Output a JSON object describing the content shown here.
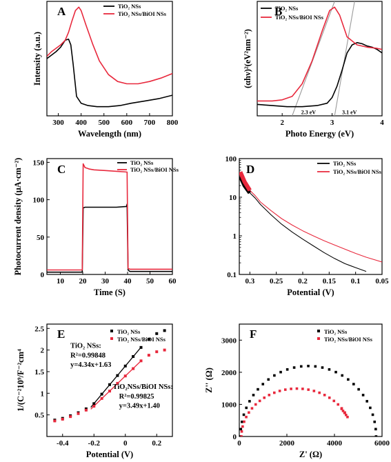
{
  "figure": {
    "panels": [
      {
        "id": "A",
        "box": "A",
        "title": "",
        "xlabel": "Wavelength (nm)",
        "ylabel": "Intensity (a.u.)",
        "xlim": [
          250,
          800
        ],
        "ylim": [
          0,
          1
        ],
        "xscale": "linear",
        "yscale": "linear",
        "xticks": [
          300,
          400,
          500,
          600,
          700,
          800
        ],
        "yticks": [],
        "legend": "top-right",
        "series": [
          {
            "name": "TiO₂ NSs",
            "color": "#000000",
            "x": [
              250,
              270,
              290,
              310,
              330,
              345,
              355,
              365,
              380,
              400,
              430,
              470,
              520,
              570,
              620,
              680,
              740,
              800
            ],
            "y": [
              0.5,
              0.53,
              0.56,
              0.6,
              0.66,
              0.67,
              0.62,
              0.45,
              0.17,
              0.11,
              0.09,
              0.08,
              0.08,
              0.09,
              0.11,
              0.13,
              0.15,
              0.18
            ]
          },
          {
            "name": "TiO₂ NSs/BiOI NSs",
            "color": "#e8283c",
            "x": [
              250,
              270,
              290,
              310,
              330,
              345,
              360,
              375,
              390,
              400,
              420,
              450,
              480,
              520,
              560,
              600,
              650,
              700,
              750,
              800
            ],
            "y": [
              0.52,
              0.56,
              0.59,
              0.62,
              0.66,
              0.73,
              0.83,
              0.92,
              0.95,
              0.92,
              0.8,
              0.63,
              0.48,
              0.36,
              0.3,
              0.28,
              0.28,
              0.3,
              0.33,
              0.37
            ]
          }
        ],
        "annotations": []
      },
      {
        "id": "B",
        "box": "B",
        "title": "",
        "xlabel": "Photo Energy (eV)",
        "ylabel": "(αhν)²(eV²nm⁻²)",
        "xlim": [
          1.5,
          4
        ],
        "ylim": [
          0,
          1
        ],
        "xscale": "linear",
        "yscale": "linear",
        "xticks": [
          2,
          3,
          4
        ],
        "yticks": [],
        "legend": "top-left",
        "series": [
          {
            "name": "TiO₂ NSs",
            "color": "#000000",
            "x": [
              1.5,
              1.8,
              2.1,
              2.4,
              2.7,
              2.9,
              3.0,
              3.1,
              3.2,
              3.3,
              3.4,
              3.5,
              3.6,
              3.7,
              3.8,
              3.9,
              4.0
            ],
            "y": [
              0.1,
              0.09,
              0.08,
              0.08,
              0.09,
              0.11,
              0.16,
              0.26,
              0.4,
              0.55,
              0.62,
              0.64,
              0.63,
              0.61,
              0.6,
              0.58,
              0.55
            ]
          },
          {
            "name": "TiO₂ NSs/BiOI NSs",
            "color": "#e8283c",
            "x": [
              1.5,
              1.8,
              2.0,
              2.2,
              2.4,
              2.6,
              2.8,
              2.95,
              3.05,
              3.15,
              3.3,
              3.5,
              3.7,
              3.9,
              4.0
            ],
            "y": [
              0.13,
              0.13,
              0.14,
              0.17,
              0.28,
              0.48,
              0.74,
              0.92,
              0.95,
              0.88,
              0.69,
              0.62,
              0.6,
              0.59,
              0.58
            ]
          }
        ],
        "annotations": [
          {
            "text": "2.3 eV",
            "x": 2.38,
            "y": 0.015
          },
          {
            "text": "3.1 eV",
            "x": 3.2,
            "y": 0.015
          }
        ],
        "fit_lines": [
          {
            "x": [
              2.2,
              3.05
            ],
            "y": [
              0.0,
              1.0
            ]
          },
          {
            "x": [
              3.05,
              3.45
            ],
            "y": [
              0.0,
              1.0
            ]
          }
        ]
      },
      {
        "id": "C",
        "box": "C",
        "title": "",
        "xlabel": "Time (S)",
        "ylabel": "Photocurrent density (μA·cm⁻²)",
        "xlim": [
          4,
          60
        ],
        "ylim": [
          0,
          155
        ],
        "xscale": "linear",
        "yscale": "linear",
        "xticks": [
          10,
          20,
          30,
          40,
          50,
          60
        ],
        "yticks": [
          0,
          50,
          100,
          150
        ],
        "legend": "top-right",
        "series": [
          {
            "name": "TiO₂ NSs",
            "color": "#000000",
            "x": [
              4,
              19.8,
              20.2,
              21,
              25,
              30,
              35,
              39.5,
              39.8,
              40.2,
              41,
              50,
              60
            ],
            "y": [
              3,
              3,
              89,
              90,
              90,
              90,
              90,
              91,
              94,
              6,
              4,
              4,
              4
            ]
          },
          {
            "name": "TiO₂ NSs/BiOI NSs",
            "color": "#e8283c",
            "x": [
              4,
              19.8,
              20.2,
              21,
              23,
              25,
              30,
              35,
              39.8,
              40.2,
              41,
              50,
              60
            ],
            "y": [
              6,
              6,
              148,
              143,
              141,
              140,
              139,
              138,
              137,
              8,
              7,
              7,
              7
            ]
          }
        ],
        "annotations": []
      },
      {
        "id": "D",
        "box": "D",
        "title": "",
        "xlabel": "Potential (V)",
        "ylabel": "",
        "xlim": [
          0.32,
          0.05
        ],
        "ylim": [
          0.1,
          100
        ],
        "xscale": "linear",
        "yscale": "log",
        "xticks": [
          0.3,
          0.25,
          0.2,
          0.15,
          0.1,
          0.05
        ],
        "yticks": [
          0.1,
          1,
          10,
          100
        ],
        "legend": "top-right",
        "series": [
          {
            "name": "TiO₂ NSs",
            "color": "#000000",
            "x": [
              0.318,
              0.31,
              0.3,
              0.29,
              0.28,
              0.26,
              0.24,
              0.22,
              0.2,
              0.18,
              0.16,
              0.14,
              0.12,
              0.1,
              0.08
            ],
            "y": [
              35,
              20,
              13,
              9.5,
              6.5,
              3.5,
              2.0,
              1.25,
              0.82,
              0.55,
              0.37,
              0.26,
              0.19,
              0.15,
              0.12
            ]
          },
          {
            "name": "TiO₂ NSs/BiOI NSs",
            "color": "#e8283c",
            "x": [
              0.318,
              0.31,
              0.3,
              0.29,
              0.28,
              0.26,
              0.24,
              0.22,
              0.2,
              0.18,
              0.16,
              0.14,
              0.12,
              0.1,
              0.08,
              0.05
            ],
            "y": [
              45,
              25,
              15,
              11,
              7.5,
              4.5,
              2.8,
              1.9,
              1.35,
              1.0,
              0.75,
              0.58,
              0.45,
              0.35,
              0.28,
              0.21
            ]
          }
        ],
        "annotations": []
      },
      {
        "id": "E",
        "box": "E",
        "title": "",
        "xlabel": "Potential (V)",
        "ylabel": "1/(C⁻²10⁹/F⁻²cm⁴",
        "xlim": [
          -0.5,
          0.3
        ],
        "ylim": [
          0,
          2.6
        ],
        "xscale": "linear",
        "yscale": "linear",
        "xticks": [
          -0.4,
          -0.2,
          0.0,
          0.2
        ],
        "yticks": [
          0.5,
          1.0,
          1.5,
          2.0,
          2.5
        ],
        "legend": "top-right",
        "series": [
          {
            "name": "TiO₂ NSs",
            "color": "#000000",
            "x": [
              -0.45,
              -0.4,
              -0.35,
              -0.3,
              -0.25,
              -0.2,
              -0.15,
              -0.1,
              -0.05,
              0.0,
              0.05,
              0.1,
              0.15,
              0.2,
              0.25
            ],
            "y": [
              0.38,
              0.42,
              0.48,
              0.55,
              0.64,
              0.76,
              0.98,
              1.2,
              1.41,
              1.63,
              1.85,
              2.06,
              2.25,
              2.38,
              2.45
            ],
            "marker": "square"
          },
          {
            "name": "TiO₂ NSs/BiOI NSs",
            "color": "#e8283c",
            "x": [
              -0.45,
              -0.4,
              -0.35,
              -0.3,
              -0.25,
              -0.2,
              -0.15,
              -0.1,
              -0.05,
              0.0,
              0.05,
              0.1,
              0.15,
              0.2,
              0.25
            ],
            "y": [
              0.36,
              0.4,
              0.46,
              0.53,
              0.61,
              0.7,
              0.88,
              1.05,
              1.23,
              1.4,
              1.57,
              1.75,
              1.88,
              1.96,
              2.0
            ],
            "marker": "square"
          }
        ],
        "fit_lines": [
          {
            "color": "#000000",
            "x": [
              -0.22,
              0.1
            ],
            "y": [
              0.675,
              2.064
            ]
          },
          {
            "color": "#e8283c",
            "x": [
              -0.22,
              0.1
            ],
            "y": [
              0.632,
              1.749
            ]
          }
        ],
        "annotations": [
          {
            "text": "TiO₂ NSs:",
            "x": -0.35,
            "y": 2.05
          },
          {
            "text": "R²=0.99848",
            "x": -0.35,
            "y": 1.83
          },
          {
            "text": "y=4.34x+1.63",
            "x": -0.35,
            "y": 1.61
          },
          {
            "text": "TiO₂NSs/BiOI NSs:",
            "x": -0.08,
            "y": 1.1
          },
          {
            "text": "R²=0.99825",
            "x": -0.04,
            "y": 0.88
          },
          {
            "text": "y=3.49x+1.40",
            "x": -0.04,
            "y": 0.66
          }
        ]
      },
      {
        "id": "F",
        "box": "F",
        "title": "",
        "xlabel": "Z' (Ω)",
        "ylabel": "Z'' (Ω)",
        "xlim": [
          0,
          6000
        ],
        "ylim": [
          0,
          3500
        ],
        "xscale": "linear",
        "yscale": "linear",
        "xticks": [
          0,
          2000,
          4000,
          6000
        ],
        "yticks": [
          0,
          1000,
          2000,
          3000
        ],
        "legend": "top-right",
        "series": [
          {
            "name": "TiO₂ NSs",
            "color": "#000000",
            "marker": "square",
            "arc": {
              "cx": 2900,
              "r": 2850,
              "k": 0.77
            }
          },
          {
            "name": "TiO₂ NSs/BiOI NSs",
            "color": "#e8283c",
            "marker": "square",
            "arc": {
              "cx": 2420,
              "r": 2330,
              "k": 0.64,
              "end_deg": 20,
              "tail": [
                4300,
                860
              ]
            }
          }
        ],
        "annotations": []
      }
    ]
  }
}
